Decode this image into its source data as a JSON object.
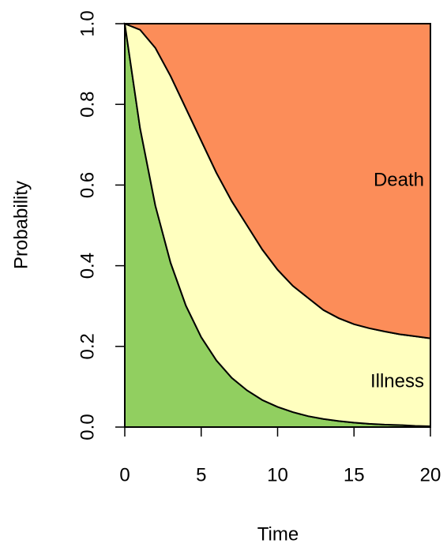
{
  "chart_data": {
    "type": "area",
    "stacked": true,
    "x_label": "Time",
    "y_label": "Probability",
    "x": [
      0,
      1,
      2,
      3,
      4,
      5,
      6,
      7,
      8,
      9,
      10,
      11,
      12,
      13,
      14,
      15,
      16,
      17,
      18,
      19,
      20
    ],
    "series": [
      {
        "color": "#91cf60",
        "values": [
          1,
          0.741,
          0.549,
          0.407,
          0.301,
          0.223,
          0.165,
          0.122,
          0.091,
          0.067,
          0.05,
          0.037,
          0.027,
          0.02,
          0.015,
          0.011,
          0.008,
          0.006,
          0.005,
          0.003,
          0.002
        ]
      },
      {
        "name": "Illness",
        "color": "#ffffbf",
        "values": [
          0,
          0.244,
          0.391,
          0.463,
          0.489,
          0.487,
          0.465,
          0.438,
          0.409,
          0.373,
          0.34,
          0.313,
          0.293,
          0.27,
          0.255,
          0.244,
          0.237,
          0.231,
          0.225,
          0.222,
          0.218
        ]
      },
      {
        "name": "Death",
        "color": "#fc8d59",
        "values": [
          0,
          0.015,
          0.06,
          0.13,
          0.21,
          0.29,
          0.37,
          0.44,
          0.5,
          0.56,
          0.61,
          0.65,
          0.68,
          0.71,
          0.73,
          0.745,
          0.755,
          0.763,
          0.77,
          0.775,
          0.78
        ]
      }
    ],
    "xlim": [
      0,
      20
    ],
    "xticks": [
      0,
      5,
      10,
      15,
      20
    ],
    "ylim": [
      0,
      1
    ],
    "yticks": [
      {
        "value": 0,
        "label": "0.0"
      },
      0.2,
      0.4,
      0.6,
      0.8,
      {
        "value": 1,
        "label": "1.0"
      }
    ]
  }
}
